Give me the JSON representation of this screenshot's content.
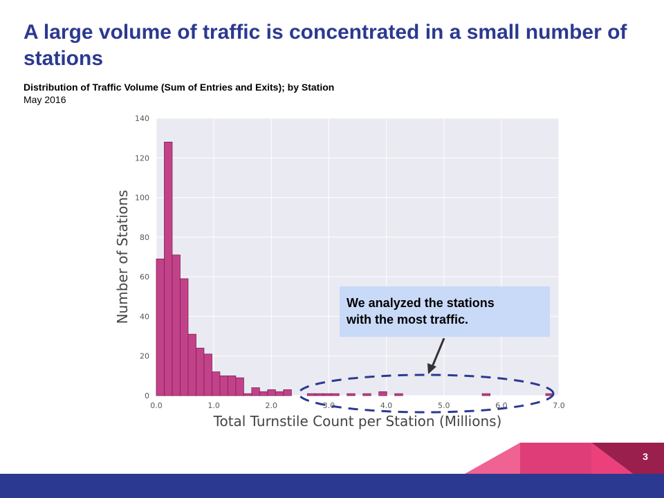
{
  "slide": {
    "title": "A large volume of traffic is concentrated in a small number of stations",
    "page_number": "3"
  },
  "callout": {
    "text_line1": "We analyzed the stations",
    "text_line2": "with the most traffic."
  },
  "colors": {
    "bar_fill": "#c2428a",
    "bar_edge": "#7a1f52",
    "plot_bg": "#eaeaf2",
    "grid": "#ffffff",
    "ellipse": "#2b3990",
    "title": "#2b3990",
    "footer_bar": "#2b3990",
    "callout_bg": "#c9daf8"
  },
  "chart_data": {
    "type": "bar",
    "title": "Distribution of Traffic Volume (Sum of Entries and Exits); by Station",
    "subtitle": "May 2016",
    "xlabel": "Total Turnstile Count per Station (Millions)",
    "ylabel": "Number of Stations",
    "xlim": [
      0.0,
      7.0
    ],
    "ylim": [
      0,
      140
    ],
    "x_ticks": [
      "0.0",
      "1.0",
      "2.0",
      "3.0",
      "4.0",
      "5.0",
      "6.0",
      "7.0"
    ],
    "y_ticks": [
      "0",
      "20",
      "40",
      "60",
      "80",
      "100",
      "120",
      "140"
    ],
    "grid": true,
    "bin_start": 0.0,
    "bin_width": 0.1382,
    "values": [
      69,
      128,
      71,
      59,
      31,
      24,
      21,
      12,
      10,
      10,
      9,
      1,
      4,
      2,
      3,
      2,
      3,
      0,
      0,
      1,
      1,
      1,
      1,
      0,
      1,
      0,
      1,
      0,
      2,
      0,
      1,
      0,
      0,
      0,
      0,
      0,
      0,
      0,
      0,
      0,
      0,
      1,
      0,
      0,
      0,
      0,
      0,
      0,
      0,
      1
    ]
  }
}
